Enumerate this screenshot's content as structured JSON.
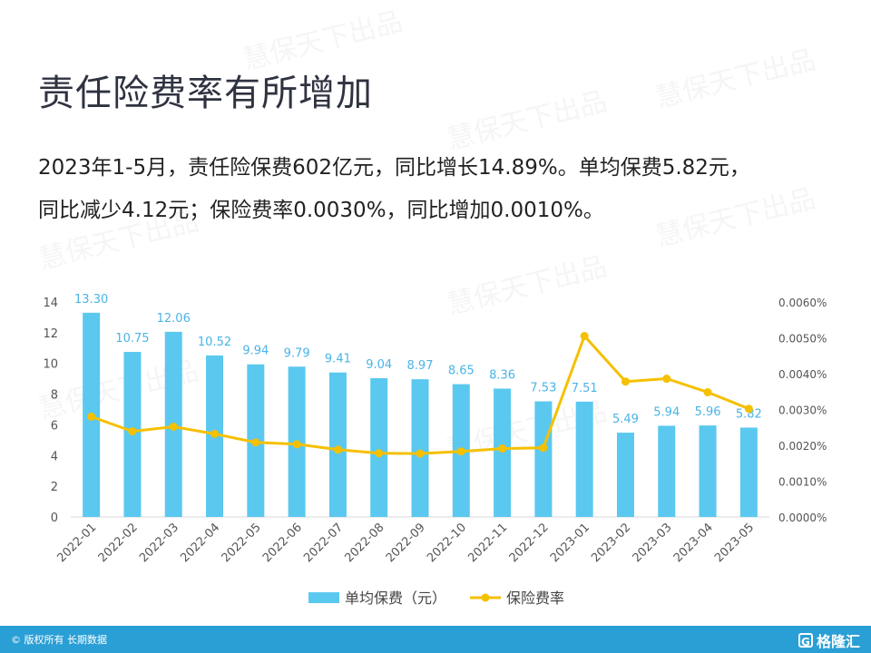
{
  "title": "责任险费率有所增加",
  "summary": {
    "line1": "2023年1-5月，责任险保费602亿元，同比增长14.89%。单均保费5.82元，",
    "line2": "同比减少4.12元；保险费率0.0030%，同比增加0.0010%。"
  },
  "watermark": "慧保天下出品",
  "footer": {
    "copyright": "© 版权所有 长期数据",
    "brand": "格隆汇",
    "brand_icon": "G"
  },
  "colors": {
    "bar": "#5bc8ef",
    "line": "#f5c000",
    "bar_label": "#4ab4e6",
    "footer": "#2a9fd6"
  },
  "chart_data": {
    "type": "bar",
    "categories": [
      "2022-01",
      "2022-02",
      "2022-03",
      "2022-04",
      "2022-05",
      "2022-06",
      "2022-07",
      "2022-08",
      "2022-09",
      "2022-10",
      "2022-11",
      "2022-12",
      "2023-01",
      "2023-02",
      "2023-03",
      "2023-04",
      "2023-05"
    ],
    "series": [
      {
        "name": "单均保费（元）",
        "type": "bar",
        "axis": "left",
        "values": [
          13.3,
          10.75,
          12.06,
          10.52,
          9.94,
          9.79,
          9.41,
          9.04,
          8.97,
          8.65,
          8.36,
          7.53,
          7.51,
          5.49,
          5.94,
          5.96,
          5.82
        ],
        "labels": [
          "13.30",
          "10.75",
          "12.06",
          "10.52",
          "9.94",
          "9.79",
          "9.41",
          "9.04",
          "8.97",
          "8.65",
          "8.36",
          "7.53",
          "7.51",
          "5.49",
          "5.94",
          "5.96",
          "5.82"
        ]
      },
      {
        "name": "保险费率",
        "type": "line",
        "axis": "right",
        "values": [
          0.0028,
          0.00239,
          0.00252,
          0.00232,
          0.00208,
          0.00203,
          0.00188,
          0.00178,
          0.00177,
          0.00183,
          0.00191,
          0.00193,
          0.00505,
          0.00378,
          0.00386,
          0.00348,
          0.00302
        ]
      }
    ],
    "y_left": {
      "min": 0,
      "max": 14,
      "ticks": [
        "0",
        "2",
        "4",
        "6",
        "8",
        "10",
        "12",
        "14"
      ]
    },
    "y_right": {
      "min": 0,
      "max": 0.006,
      "ticks": [
        "0.0000%",
        "0.0010%",
        "0.0020%",
        "0.0030%",
        "0.0040%",
        "0.0050%",
        "0.0060%"
      ]
    },
    "grid": false,
    "legend_position": "bottom"
  }
}
